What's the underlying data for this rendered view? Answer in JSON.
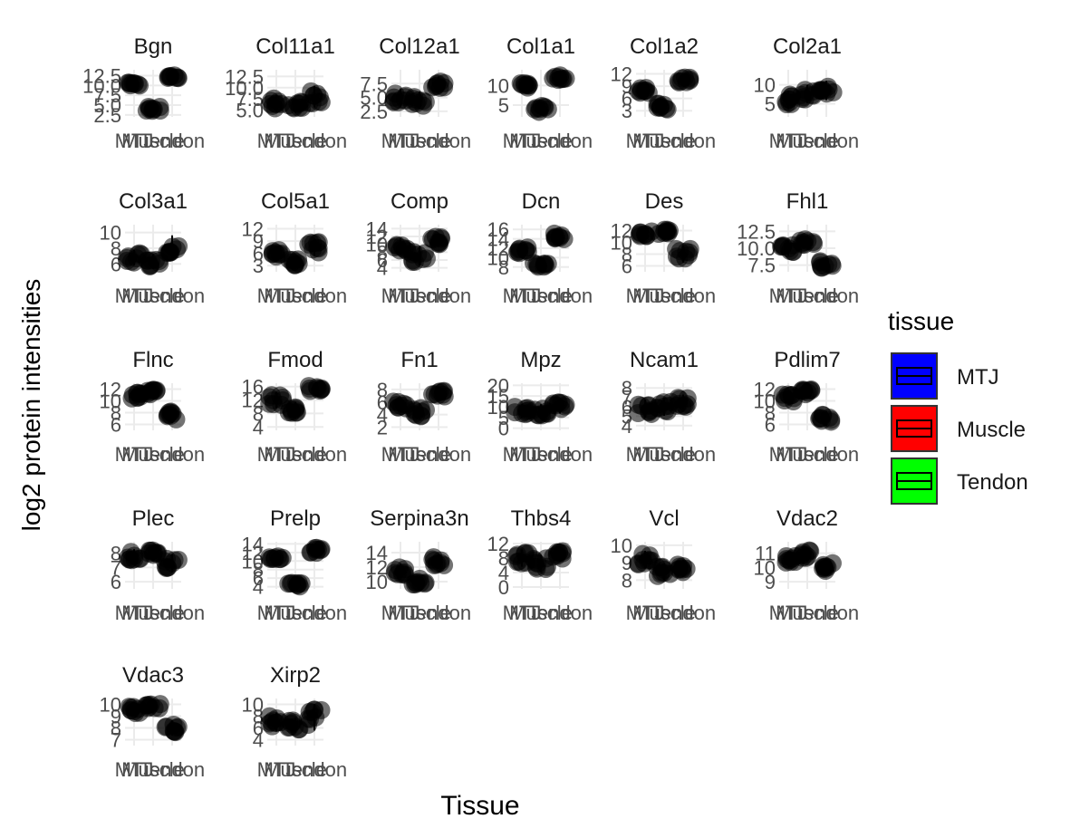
{
  "chart_data": {
    "type": "box",
    "xlabel": "Tissue",
    "ylabel": "log2 protein intensities",
    "legend": {
      "title": "tissue",
      "position": "right",
      "entries": [
        {
          "name": "MTJ",
          "color": "#0000ff"
        },
        {
          "name": "Muscle",
          "color": "#ff0000"
        },
        {
          "name": "Tendon",
          "color": "#00ff00"
        }
      ]
    },
    "categories": [
      "MTJ",
      "Muscle",
      "Tendon"
    ],
    "category_label_display": [
      "MTJ",
      "Muscle",
      "Tendon"
    ],
    "grid": true,
    "point_color": "#000000",
    "panels": [
      {
        "title": "Bgn",
        "ylim": [
          2.0,
          14.0
        ],
        "yticks": [
          "12.5",
          "10.0",
          "7.5",
          "5.0",
          "2.5"
        ],
        "tickvals": [
          12.5,
          10.0,
          7.5,
          5.0,
          2.5
        ],
        "centers": [
          10.5,
          4.0,
          12.3
        ],
        "spreads": [
          0.6,
          0.6,
          0.5
        ]
      },
      {
        "title": "Col11a1",
        "ylim": [
          3.5,
          14.0
        ],
        "yticks": [
          "12.5",
          "10.0",
          "7.5",
          "5.0"
        ],
        "tickvals": [
          12.5,
          10.0,
          7.5,
          5.0
        ],
        "centers": [
          6.5,
          6.0,
          8.0
        ],
        "spreads": [
          1.2,
          1.0,
          1.5
        ]
      },
      {
        "title": "Col12a1",
        "ylim": [
          1.5,
          10.0
        ],
        "yticks": [
          "7.5",
          "5.0",
          "2.5"
        ],
        "tickvals": [
          7.5,
          5.0,
          2.5
        ],
        "centers": [
          5.0,
          4.5,
          7.5
        ],
        "spreads": [
          1.0,
          1.0,
          0.8
        ]
      },
      {
        "title": "Col1a1",
        "ylim": [
          2.0,
          14.0
        ],
        "yticks": [
          "10",
          "5"
        ],
        "tickvals": [
          10,
          5
        ],
        "centers": [
          10.0,
          4.0,
          12.0
        ],
        "spreads": [
          0.7,
          0.8,
          0.6
        ]
      },
      {
        "title": "Col1a2",
        "ylim": [
          1.5,
          13.0
        ],
        "yticks": [
          "12",
          "9",
          "6",
          "3"
        ],
        "tickvals": [
          12,
          9,
          6,
          3
        ],
        "centers": [
          8.0,
          4.0,
          10.5
        ],
        "spreads": [
          0.7,
          0.9,
          0.7
        ]
      },
      {
        "title": "Col2a1",
        "ylim": [
          1.5,
          14.0
        ],
        "yticks": [
          "10",
          "5"
        ],
        "tickvals": [
          10,
          5
        ],
        "centers": [
          6.0,
          7.5,
          8.5
        ],
        "spreads": [
          1.5,
          1.5,
          1.6
        ]
      },
      {
        "title": "Col3a1",
        "ylim": [
          5.0,
          11.0
        ],
        "yticks": [
          "10",
          "8",
          "6"
        ],
        "tickvals": [
          10,
          8,
          6
        ],
        "centers": [
          6.8,
          6.3,
          8.2
        ],
        "spreads": [
          0.6,
          0.6,
          0.9
        ]
      },
      {
        "title": "Col5a1",
        "ylim": [
          1.5,
          13.0
        ],
        "yticks": [
          "12",
          "9",
          "6",
          "3"
        ],
        "tickvals": [
          12,
          9,
          6,
          3
        ],
        "centers": [
          6.0,
          4.0,
          7.5
        ],
        "spreads": [
          1.0,
          0.9,
          1.3
        ]
      },
      {
        "title": "Comp",
        "ylim": [
          3.0,
          15.0
        ],
        "yticks": [
          "14",
          "12",
          "10",
          "8",
          "6",
          "4"
        ],
        "tickvals": [
          14,
          12,
          10,
          8,
          6,
          4
        ],
        "centers": [
          9.5,
          7.0,
          11.0
        ],
        "spreads": [
          1.3,
          1.5,
          1.0
        ]
      },
      {
        "title": "Dcn",
        "ylim": [
          7.0,
          17.0
        ],
        "yticks": [
          "16",
          "14",
          "12",
          "10",
          "8"
        ],
        "tickvals": [
          16,
          14,
          12,
          10,
          8
        ],
        "centers": [
          11.5,
          8.3,
          14.5
        ],
        "spreads": [
          0.7,
          0.6,
          0.6
        ]
      },
      {
        "title": "Des",
        "ylim": [
          5.0,
          13.0
        ],
        "yticks": [
          "12",
          "10",
          "8",
          "6"
        ],
        "tickvals": [
          12,
          10,
          8,
          6
        ],
        "centers": [
          11.5,
          11.8,
          8.0
        ],
        "spreads": [
          0.5,
          0.4,
          0.9
        ]
      },
      {
        "title": "Fhl1",
        "ylim": [
          6.5,
          13.5
        ],
        "yticks": [
          "12.5",
          "10.0",
          "7.5"
        ],
        "tickvals": [
          12.5,
          10.0,
          7.5
        ],
        "centers": [
          10.0,
          11.0,
          7.5
        ],
        "spreads": [
          0.7,
          0.6,
          0.6
        ]
      },
      {
        "title": "Flnc",
        "ylim": [
          5.0,
          13.0
        ],
        "yticks": [
          "12",
          "10",
          "8",
          "6"
        ],
        "tickvals": [
          12,
          10,
          8,
          6
        ],
        "centers": [
          11.0,
          11.5,
          7.5
        ],
        "spreads": [
          0.6,
          0.5,
          0.8
        ]
      },
      {
        "title": "Fmod",
        "ylim": [
          3.0,
          17.0
        ],
        "yticks": [
          "16",
          "12",
          "8",
          "4"
        ],
        "tickvals": [
          16,
          12,
          8,
          4
        ],
        "centers": [
          12.0,
          9.0,
          15.5
        ],
        "spreads": [
          1.5,
          1.5,
          0.8
        ]
      },
      {
        "title": "Fn1",
        "ylim": [
          1.5,
          9.0
        ],
        "yticks": [
          "8",
          "6",
          "4",
          "2"
        ],
        "tickvals": [
          8,
          6,
          4,
          2
        ],
        "centers": [
          5.5,
          4.5,
          7.3
        ],
        "spreads": [
          0.6,
          0.8,
          0.5
        ]
      },
      {
        "title": "Mpz",
        "ylim": [
          -1.0,
          21.0
        ],
        "yticks": [
          "20",
          "15",
          "10",
          "5",
          "0"
        ],
        "tickvals": [
          20,
          15,
          10,
          5,
          0
        ],
        "centers": [
          8.0,
          8.0,
          10.0
        ],
        "spreads": [
          2.0,
          2.0,
          2.0
        ]
      },
      {
        "title": "Ncam1",
        "ylim": [
          3.5,
          8.5
        ],
        "yticks": [
          "8",
          "7",
          "6",
          "5",
          "4"
        ],
        "tickvals": [
          8,
          7,
          6,
          5,
          4
        ],
        "centers": [
          5.8,
          6.0,
          6.5
        ],
        "spreads": [
          0.6,
          0.6,
          0.5
        ]
      },
      {
        "title": "Pdlim7",
        "ylim": [
          5.0,
          13.0
        ],
        "yticks": [
          "12",
          "10",
          "8",
          "6"
        ],
        "tickvals": [
          12,
          10,
          8,
          6
        ],
        "centers": [
          10.5,
          11.5,
          7.0
        ],
        "spreads": [
          0.6,
          0.5,
          0.8
        ]
      },
      {
        "title": "Plec",
        "ylim": [
          5.5,
          8.8
        ],
        "yticks": [
          "8",
          "7",
          "6"
        ],
        "tickvals": [
          8,
          7,
          6
        ],
        "centers": [
          7.8,
          7.9,
          7.3
        ],
        "spreads": [
          0.3,
          0.3,
          0.4
        ]
      },
      {
        "title": "Prelp",
        "ylim": [
          3.5,
          14.5
        ],
        "yticks": [
          "14",
          "12",
          "10",
          "8",
          "6",
          "4"
        ],
        "tickvals": [
          14,
          12,
          10,
          8,
          6,
          4
        ],
        "centers": [
          10.5,
          4.5,
          12.5
        ],
        "spreads": [
          0.6,
          0.5,
          0.6
        ]
      },
      {
        "title": "Serpina3n",
        "ylim": [
          9.0,
          15.5
        ],
        "yticks": [
          "14",
          "12",
          "10"
        ],
        "tickvals": [
          14,
          12,
          10
        ],
        "centers": [
          11.5,
          10.0,
          12.8
        ],
        "spreads": [
          0.6,
          0.4,
          0.6
        ]
      },
      {
        "title": "Thbs4",
        "ylim": [
          -0.5,
          12.5
        ],
        "yticks": [
          "12",
          "8",
          "4",
          "0"
        ],
        "tickvals": [
          12,
          8,
          4,
          0
        ],
        "centers": [
          8.0,
          6.5,
          9.0
        ],
        "spreads": [
          1.5,
          1.5,
          1.3
        ]
      },
      {
        "title": "Vcl",
        "ylim": [
          7.5,
          10.2
        ],
        "yticks": [
          "10",
          "9",
          "8"
        ],
        "tickvals": [
          10,
          9,
          8
        ],
        "centers": [
          9.2,
          8.5,
          8.7
        ],
        "spreads": [
          0.3,
          0.3,
          0.3
        ]
      },
      {
        "title": "Vdac2",
        "ylim": [
          8.5,
          11.8
        ],
        "yticks": [
          "11",
          "10",
          "9"
        ],
        "tickvals": [
          11,
          10,
          9
        ],
        "centers": [
          10.6,
          10.9,
          10.0
        ],
        "spreads": [
          0.3,
          0.3,
          0.3
        ]
      },
      {
        "title": "Vdac3",
        "ylim": [
          6.5,
          10.5
        ],
        "yticks": [
          "10",
          "9",
          "8",
          "7"
        ],
        "tickvals": [
          10,
          9,
          8,
          7
        ],
        "centers": [
          9.5,
          9.9,
          8.0
        ],
        "spreads": [
          0.3,
          0.3,
          0.4
        ]
      },
      {
        "title": "Xirp2",
        "ylim": [
          3.0,
          11.0
        ],
        "yticks": [
          "10",
          "8",
          "6",
          "4"
        ],
        "tickvals": [
          10,
          8,
          6,
          4
        ],
        "centers": [
          7.0,
          6.5,
          7.8
        ],
        "spreads": [
          1.0,
          0.8,
          1.4
        ]
      }
    ]
  }
}
